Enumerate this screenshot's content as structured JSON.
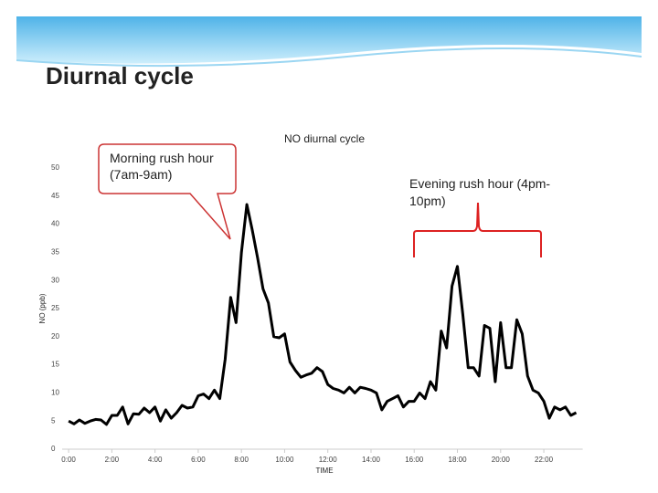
{
  "slide_title": "Diurnal cycle",
  "chart_data": {
    "type": "line",
    "title": "NO diurnal cycle",
    "y_label": "NO (ppb)",
    "x_label": "TIME",
    "annotations": [
      "Morning rush hour (7am-9am)",
      "Evening rush hour (4pm-10pm)"
    ],
    "xlim": [
      -0.3,
      23.8
    ],
    "ylim": [
      0,
      50
    ],
    "xticks": [
      {
        "value": 0,
        "label": "0:00"
      },
      {
        "value": 2,
        "label": "2:00"
      },
      {
        "value": 4,
        "label": "4:00"
      },
      {
        "value": 6,
        "label": "6:00"
      },
      {
        "value": 8,
        "label": "8:00"
      },
      {
        "value": 10,
        "label": "10:00"
      },
      {
        "value": 12,
        "label": "12:00"
      },
      {
        "value": 14,
        "label": "14:00"
      },
      {
        "value": 16,
        "label": "16:00"
      },
      {
        "value": 18,
        "label": "18:00"
      },
      {
        "value": 20,
        "label": "20:00"
      },
      {
        "value": 22,
        "label": "22:00"
      }
    ],
    "yticks": [
      0,
      5,
      10,
      15,
      20,
      25,
      30,
      35,
      40,
      45,
      50
    ],
    "color": "#000000",
    "x": [
      0,
      0.25,
      0.5,
      0.75,
      1,
      1.25,
      1.5,
      1.75,
      2,
      2.25,
      2.5,
      2.75,
      3,
      3.25,
      3.5,
      3.75,
      4,
      4.25,
      4.5,
      4.75,
      5,
      5.25,
      5.5,
      5.75,
      6,
      6.25,
      6.5,
      6.75,
      7,
      7.25,
      7.5,
      7.75,
      8,
      8.25,
      8.5,
      8.75,
      9,
      9.25,
      9.5,
      9.75,
      10,
      10.25,
      10.5,
      10.75,
      11,
      11.25,
      11.5,
      11.75,
      12,
      12.25,
      12.5,
      12.75,
      13,
      13.25,
      13.5,
      13.75,
      14,
      14.25,
      14.5,
      14.75,
      15,
      15.25,
      15.5,
      15.75,
      16,
      16.25,
      16.5,
      16.75,
      17,
      17.25,
      17.5,
      17.75,
      18,
      18.25,
      18.5,
      18.75,
      19,
      19.25,
      19.5,
      19.75,
      20,
      20.25,
      20.5,
      20.75,
      21,
      21.25,
      21.5,
      21.75,
      22,
      22.25,
      22.5,
      22.75,
      23,
      23.25,
      23.5
    ],
    "values": [
      5,
      4.5,
      5.2,
      4.6,
      5,
      5.3,
      5.2,
      4.4,
      6,
      6,
      7.5,
      4.5,
      6.3,
      6.2,
      7.3,
      6.5,
      7.5,
      5,
      7,
      5.5,
      6.5,
      7.8,
      7.3,
      7.5,
      9.5,
      9.8,
      9,
      10.5,
      9,
      16,
      27,
      22.5,
      35,
      43.5,
      39,
      34,
      28.5,
      26,
      20,
      19.8,
      20.5,
      15.5,
      14,
      12.8,
      13.2,
      13.5,
      14.5,
      13.8,
      11.5,
      10.8,
      10.5,
      10,
      11,
      10,
      11,
      10.8,
      10.5,
      10,
      7,
      8.5,
      9,
      9.5,
      7.5,
      8.5,
      8.5,
      10,
      9,
      12,
      10.5,
      21,
      18,
      29,
      32.5,
      24,
      14.5,
      14.5,
      13,
      22,
      21.5,
      12,
      22.5,
      14.5,
      14.5,
      23,
      20.5,
      13,
      10.5,
      10,
      8.5,
      5.5,
      7.5,
      7,
      7.5,
      6,
      6.5
    ]
  }
}
